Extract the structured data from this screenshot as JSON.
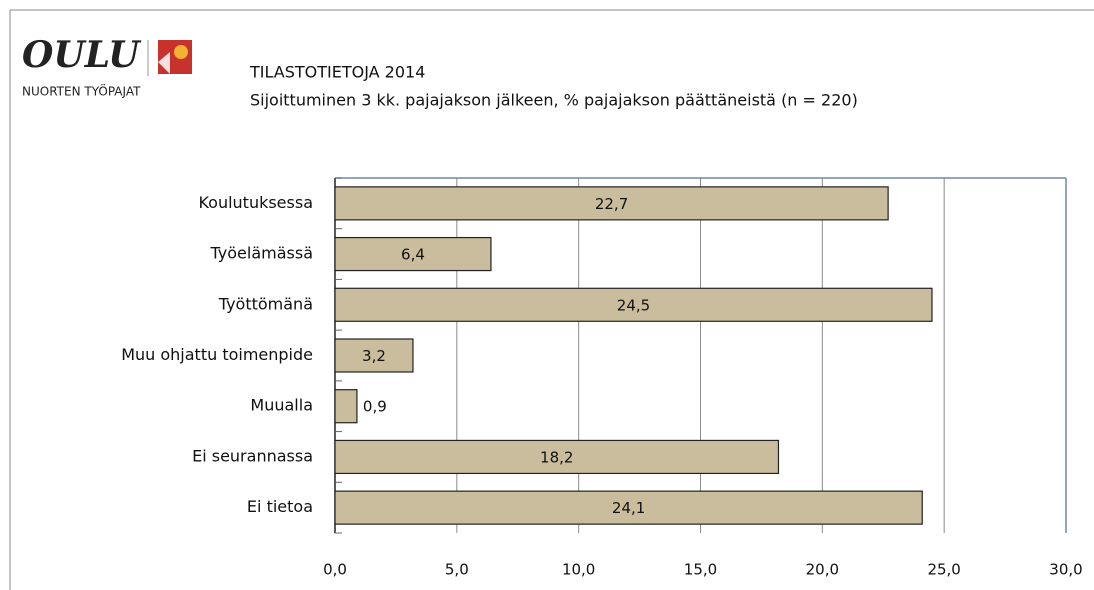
{
  "logo": {
    "name": "OULU",
    "tagline": "NUORTEN TYÖPAJAT"
  },
  "chart_data": {
    "type": "bar",
    "orientation": "horizontal",
    "title": "TILASTOTIETOJA 2014",
    "subtitle": "Sijoittuminen 3 kk. pajajakson jälkeen, % pajajakson päättäneistä (n = 220)",
    "categories": [
      "Koulutuksessa",
      "Työelämässä",
      "Työttömänä",
      "Muu ohjattu toimenpide",
      "Muualla",
      "Ei seurannassa",
      "Ei tietoa"
    ],
    "values": [
      22.7,
      6.4,
      24.5,
      3.2,
      0.9,
      18.2,
      24.1
    ],
    "value_labels": [
      "22,7",
      "6,4",
      "24,5",
      "3,2",
      "0,9",
      "18,2",
      "24,1"
    ],
    "color": "#c9bd9d",
    "xlim": [
      0,
      30
    ],
    "xticks": [
      {
        "value": 0,
        "label": "0,0"
      },
      {
        "value": 5,
        "label": "5,0"
      },
      {
        "value": 10,
        "label": "10,0"
      },
      {
        "value": 15,
        "label": "15,0"
      },
      {
        "value": 20,
        "label": "20,0"
      },
      {
        "value": 25,
        "label": "25,0"
      },
      {
        "value": 30,
        "label": "30,0"
      }
    ],
    "grid": true
  }
}
